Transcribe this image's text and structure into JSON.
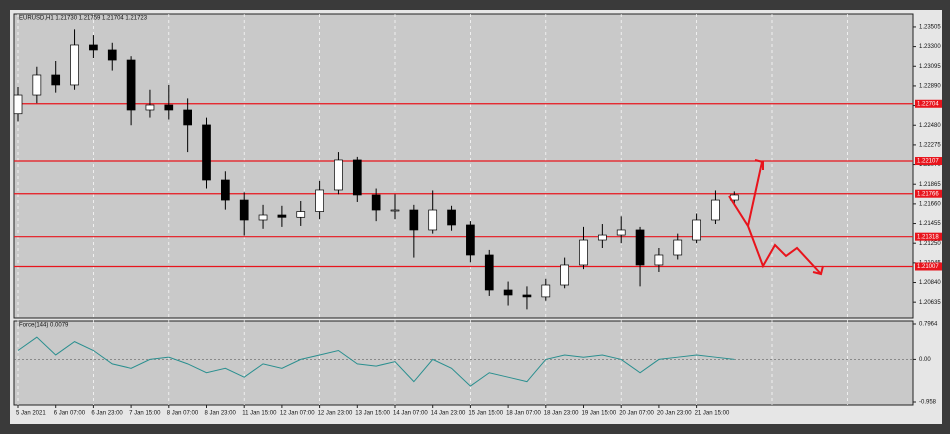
{
  "chart_data": [
    {
      "type": "candlestick",
      "title": "EURUSD,H1 1.21730 1.21759 1.21704 1.21723",
      "categories": [
        "5 Jan 2021",
        null,
        "6 Jan 07:00",
        null,
        "6 Jan 23:00",
        null,
        "7 Jan 15:00",
        null,
        "8 Jan 07:00",
        null,
        "8 Jan 23:00",
        null,
        "11 Jan 15:00",
        null,
        "12 Jan 07:00",
        null,
        "12 Jan 23:00",
        null,
        "13 Jan 15:00",
        null,
        "14 Jan 07:00",
        null,
        "14 Jan 23:00",
        null,
        "15 Jan 15:00",
        null,
        "18 Jan 07:00",
        null,
        "18 Jan 23:00",
        null,
        "19 Jan 15:00",
        null,
        "20 Jan 07:00",
        null,
        "20 Jan 23:00",
        null,
        "21 Jan 15:00",
        null,
        null
      ],
      "open": [
        1.226,
        1.22795,
        1.23004,
        1.229,
        1.23317,
        1.23265,
        1.2316,
        1.22639,
        1.22691,
        1.22639,
        1.22483,
        1.21909,
        1.217,
        1.21492,
        1.21544,
        1.2152,
        1.2158,
        1.21805,
        1.22118,
        1.21753,
        1.21596,
        1.21596,
        1.21388,
        1.21596,
        1.2144,
        1.21127,
        1.20762,
        1.2071,
        1.2069,
        1.20814,
        1.21023,
        1.21283,
        1.21335,
        1.21388,
        1.21023,
        1.21127,
        1.21283,
        1.21492,
        1.217
      ],
      "high": [
        1.2288,
        1.2309,
        1.2315,
        1.2348,
        1.2342,
        1.2334,
        1.232,
        1.2285,
        1.229,
        1.2276,
        1.2256,
        1.22,
        1.2178,
        1.2165,
        1.2164,
        1.2169,
        1.219,
        1.222,
        1.2215,
        1.2182,
        1.2176,
        1.2165,
        1.218,
        1.2164,
        1.2148,
        1.2118,
        1.2085,
        1.208,
        1.2088,
        1.211,
        1.2142,
        1.2145,
        1.2153,
        1.2142,
        1.212,
        1.2135,
        1.2156,
        1.218,
        1.2179
      ],
      "low": [
        1.2252,
        1.2271,
        1.2282,
        1.2285,
        1.2318,
        1.2305,
        1.2248,
        1.2256,
        1.2254,
        1.222,
        1.2182,
        1.216,
        1.2133,
        1.214,
        1.2142,
        1.2143,
        1.215,
        1.2176,
        1.2168,
        1.2148,
        1.215,
        1.211,
        1.2135,
        1.2138,
        1.2105,
        1.207,
        1.206,
        1.2056,
        1.2065,
        1.2078,
        1.2098,
        1.212,
        1.2125,
        1.208,
        1.2095,
        1.2108,
        1.2125,
        1.2145,
        1.2166
      ],
      "close": [
        1.22795,
        1.23004,
        1.229,
        1.23317,
        1.23265,
        1.2316,
        1.22639,
        1.22691,
        1.22639,
        1.22483,
        1.21909,
        1.217,
        1.21492,
        1.21544,
        1.2152,
        1.2158,
        1.21805,
        1.22118,
        1.21753,
        1.21596,
        1.21596,
        1.21388,
        1.21596,
        1.2144,
        1.21127,
        1.20762,
        1.2071,
        1.2069,
        1.20814,
        1.21023,
        1.21283,
        1.21335,
        1.21388,
        1.21023,
        1.21127,
        1.21283,
        1.21492,
        1.217,
        1.21753
      ],
      "ylim": [
        1.2047,
        1.2364
      ],
      "yticks": [
        1.23505,
        {
          "value": 1.233,
          "label": "1.23300"
        },
        1.23095,
        {
          "value": 1.2289,
          "label": "1.22890"
        },
        1.22685,
        {
          "value": 1.2248,
          "label": "1.22480"
        },
        1.22275,
        {
          "value": 1.2207,
          "label": "1.22070"
        },
        1.21865,
        {
          "value": 1.2166,
          "label": "1.21660"
        },
        1.21455,
        {
          "value": 1.2125,
          "label": "1.21250"
        },
        1.21045,
        {
          "value": 1.2084,
          "label": "1.20840"
        },
        1.20635
      ],
      "levels": [
        1.22704,
        1.22107,
        1.21766,
        1.21318,
        1.21007
      ],
      "level_color": "#e8141c",
      "up_color": "#ffffff",
      "down_color": "#000000"
    },
    {
      "type": "line",
      "title": "Force(144) 0.0079",
      "values": [
        0.2,
        0.5,
        0.1,
        0.4,
        0.2,
        -0.1,
        -0.2,
        0.0,
        0.05,
        -0.1,
        -0.3,
        -0.2,
        -0.4,
        -0.1,
        -0.2,
        0.0,
        0.1,
        0.2,
        -0.1,
        -0.15,
        -0.05,
        -0.5,
        0.0,
        -0.2,
        -0.6,
        -0.3,
        -0.4,
        -0.5,
        0.0,
        0.1,
        0.05,
        0.1,
        0.0,
        -0.3,
        0.0,
        0.05,
        0.1,
        0.05,
        0.0
      ],
      "color": "#2a8f8f",
      "ylim": [
        -0.958,
        0.7964
      ],
      "yticks": [
        0.7964,
        {
          "value": 0,
          "label": "0.00"
        },
        -0.958
      ]
    }
  ]
}
